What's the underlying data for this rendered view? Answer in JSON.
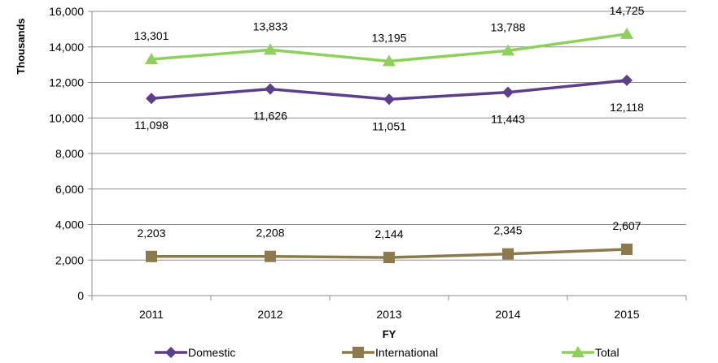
{
  "chart_data": {
    "type": "line",
    "xlabel": "FY",
    "ylabel": "Thousands",
    "ylim": [
      0,
      16000
    ],
    "yticks": [
      "0",
      "2,000",
      "4,000",
      "6,000",
      "8,000",
      "10,000",
      "12,000",
      "14,000",
      "16,000"
    ],
    "categories": [
      "2011",
      "2012",
      "2013",
      "2014",
      "2015"
    ],
    "grid": "horizontal",
    "legend_position": "bottom",
    "series": [
      {
        "name": "Domestic",
        "values": [
          11098,
          11626,
          11051,
          11443,
          12118
        ],
        "labels": [
          "11,098",
          "11,626",
          "11,051",
          "11,443",
          "12,118"
        ],
        "color": "#5b3f8a",
        "marker": "diamond",
        "label_position": "below"
      },
      {
        "name": "International",
        "values": [
          2203,
          2208,
          2144,
          2345,
          2607
        ],
        "labels": [
          "2,203",
          "2,208",
          "2,144",
          "2,345",
          "2,607"
        ],
        "color": "#8c7a4f",
        "marker": "square",
        "label_position": "above"
      },
      {
        "name": "Total",
        "values": [
          13301,
          13833,
          13195,
          13788,
          14725
        ],
        "labels": [
          "13,301",
          "13,833",
          "13,195",
          "13,788",
          "14,725"
        ],
        "color": "#8ed05c",
        "marker": "triangle",
        "label_position": "above"
      }
    ]
  }
}
